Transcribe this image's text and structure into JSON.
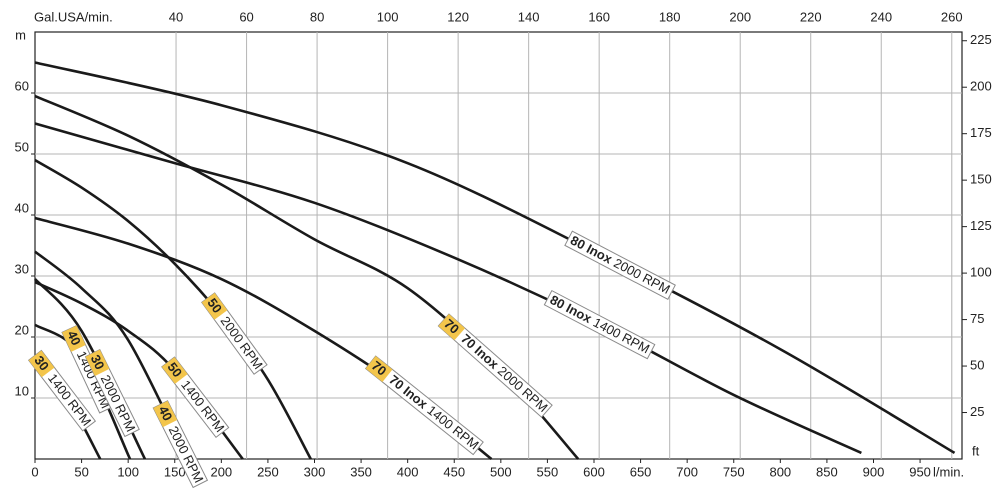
{
  "chart_data": {
    "type": "line",
    "x_label": "l/min.",
    "x2_label": "Gal.USA/min.",
    "y_label": "m",
    "y2_label": "ft",
    "xlim": [
      0,
      995
    ],
    "xticks": [
      0,
      50,
      100,
      150,
      200,
      250,
      300,
      350,
      400,
      450,
      500,
      550,
      600,
      650,
      700,
      750,
      800,
      850,
      900,
      950
    ],
    "x2lim": [
      0,
      262.9
    ],
    "x2ticks": [
      40,
      60,
      80,
      100,
      120,
      140,
      160,
      180,
      200,
      220,
      240,
      260
    ],
    "ylim": [
      0,
      70
    ],
    "yticks": [
      10,
      20,
      30,
      40,
      50,
      60
    ],
    "y2lim": [
      0,
      229.7
    ],
    "y2ticks": [
      25,
      50,
      75,
      100,
      125,
      150,
      175,
      200,
      225
    ],
    "grid": true,
    "series": [
      {
        "model": "80 Inox",
        "rpm": "2000 RPM",
        "color": "#1a1a1a",
        "x": [
          0,
          200,
          400,
          600,
          800,
          987
        ],
        "values": [
          65,
          58,
          48.5,
          34,
          18,
          1
        ]
      },
      {
        "model": "80 Inox",
        "rpm": "1400 RPM",
        "color": "#1a1a1a",
        "x": [
          0,
          150,
          300,
          450,
          600,
          750,
          887
        ],
        "values": [
          55,
          48.5,
          42,
          33,
          22.5,
          10.5,
          1
        ]
      },
      {
        "badge": "70",
        "model": "70 Inox",
        "rpm": "2000 RPM",
        "color": "#1a1a1a",
        "x": [
          0,
          100,
          200,
          300,
          400,
          500,
          583
        ],
        "values": [
          59.5,
          53,
          45,
          36,
          28,
          14.5,
          0
        ]
      },
      {
        "badge": "70",
        "model": "70 Inox",
        "rpm": "1400 RPM",
        "color": "#1a1a1a",
        "x": [
          0,
          100,
          200,
          300,
          400,
          490
        ],
        "values": [
          39.5,
          35.3,
          29.5,
          21,
          11,
          0
        ]
      },
      {
        "badge": "50",
        "rpm": "2000 RPM",
        "color": "#1a1a1a",
        "x": [
          0,
          50,
          100,
          150,
          200,
          250,
          296
        ],
        "values": [
          49,
          44.5,
          39,
          32,
          23.5,
          13,
          0
        ]
      },
      {
        "badge": "50",
        "rpm": "1400 RPM",
        "color": "#1a1a1a",
        "x": [
          0,
          50,
          100,
          150,
          223
        ],
        "values": [
          29,
          25.5,
          21,
          14.5,
          0
        ]
      },
      {
        "badge": "40",
        "rpm": "2000 RPM",
        "color": "#1a1a1a",
        "x": [
          0,
          50,
          100,
          164
        ],
        "values": [
          34,
          28,
          19.5,
          0
        ]
      },
      {
        "badge": "40",
        "rpm": "1400 RPM",
        "color": "#1a1a1a",
        "x": [
          0,
          50,
          102
        ],
        "values": [
          22,
          17,
          0
        ]
      },
      {
        "badge": "30",
        "rpm": "2000 RPM",
        "color": "#1a1a1a",
        "x": [
          0,
          50,
          118
        ],
        "values": [
          29.5,
          21,
          0
        ]
      },
      {
        "badge": "30",
        "rpm": "1400 RPM",
        "color": "#1a1a1a",
        "x": [
          0,
          35,
          70
        ],
        "values": [
          17,
          10,
          0
        ]
      }
    ]
  }
}
